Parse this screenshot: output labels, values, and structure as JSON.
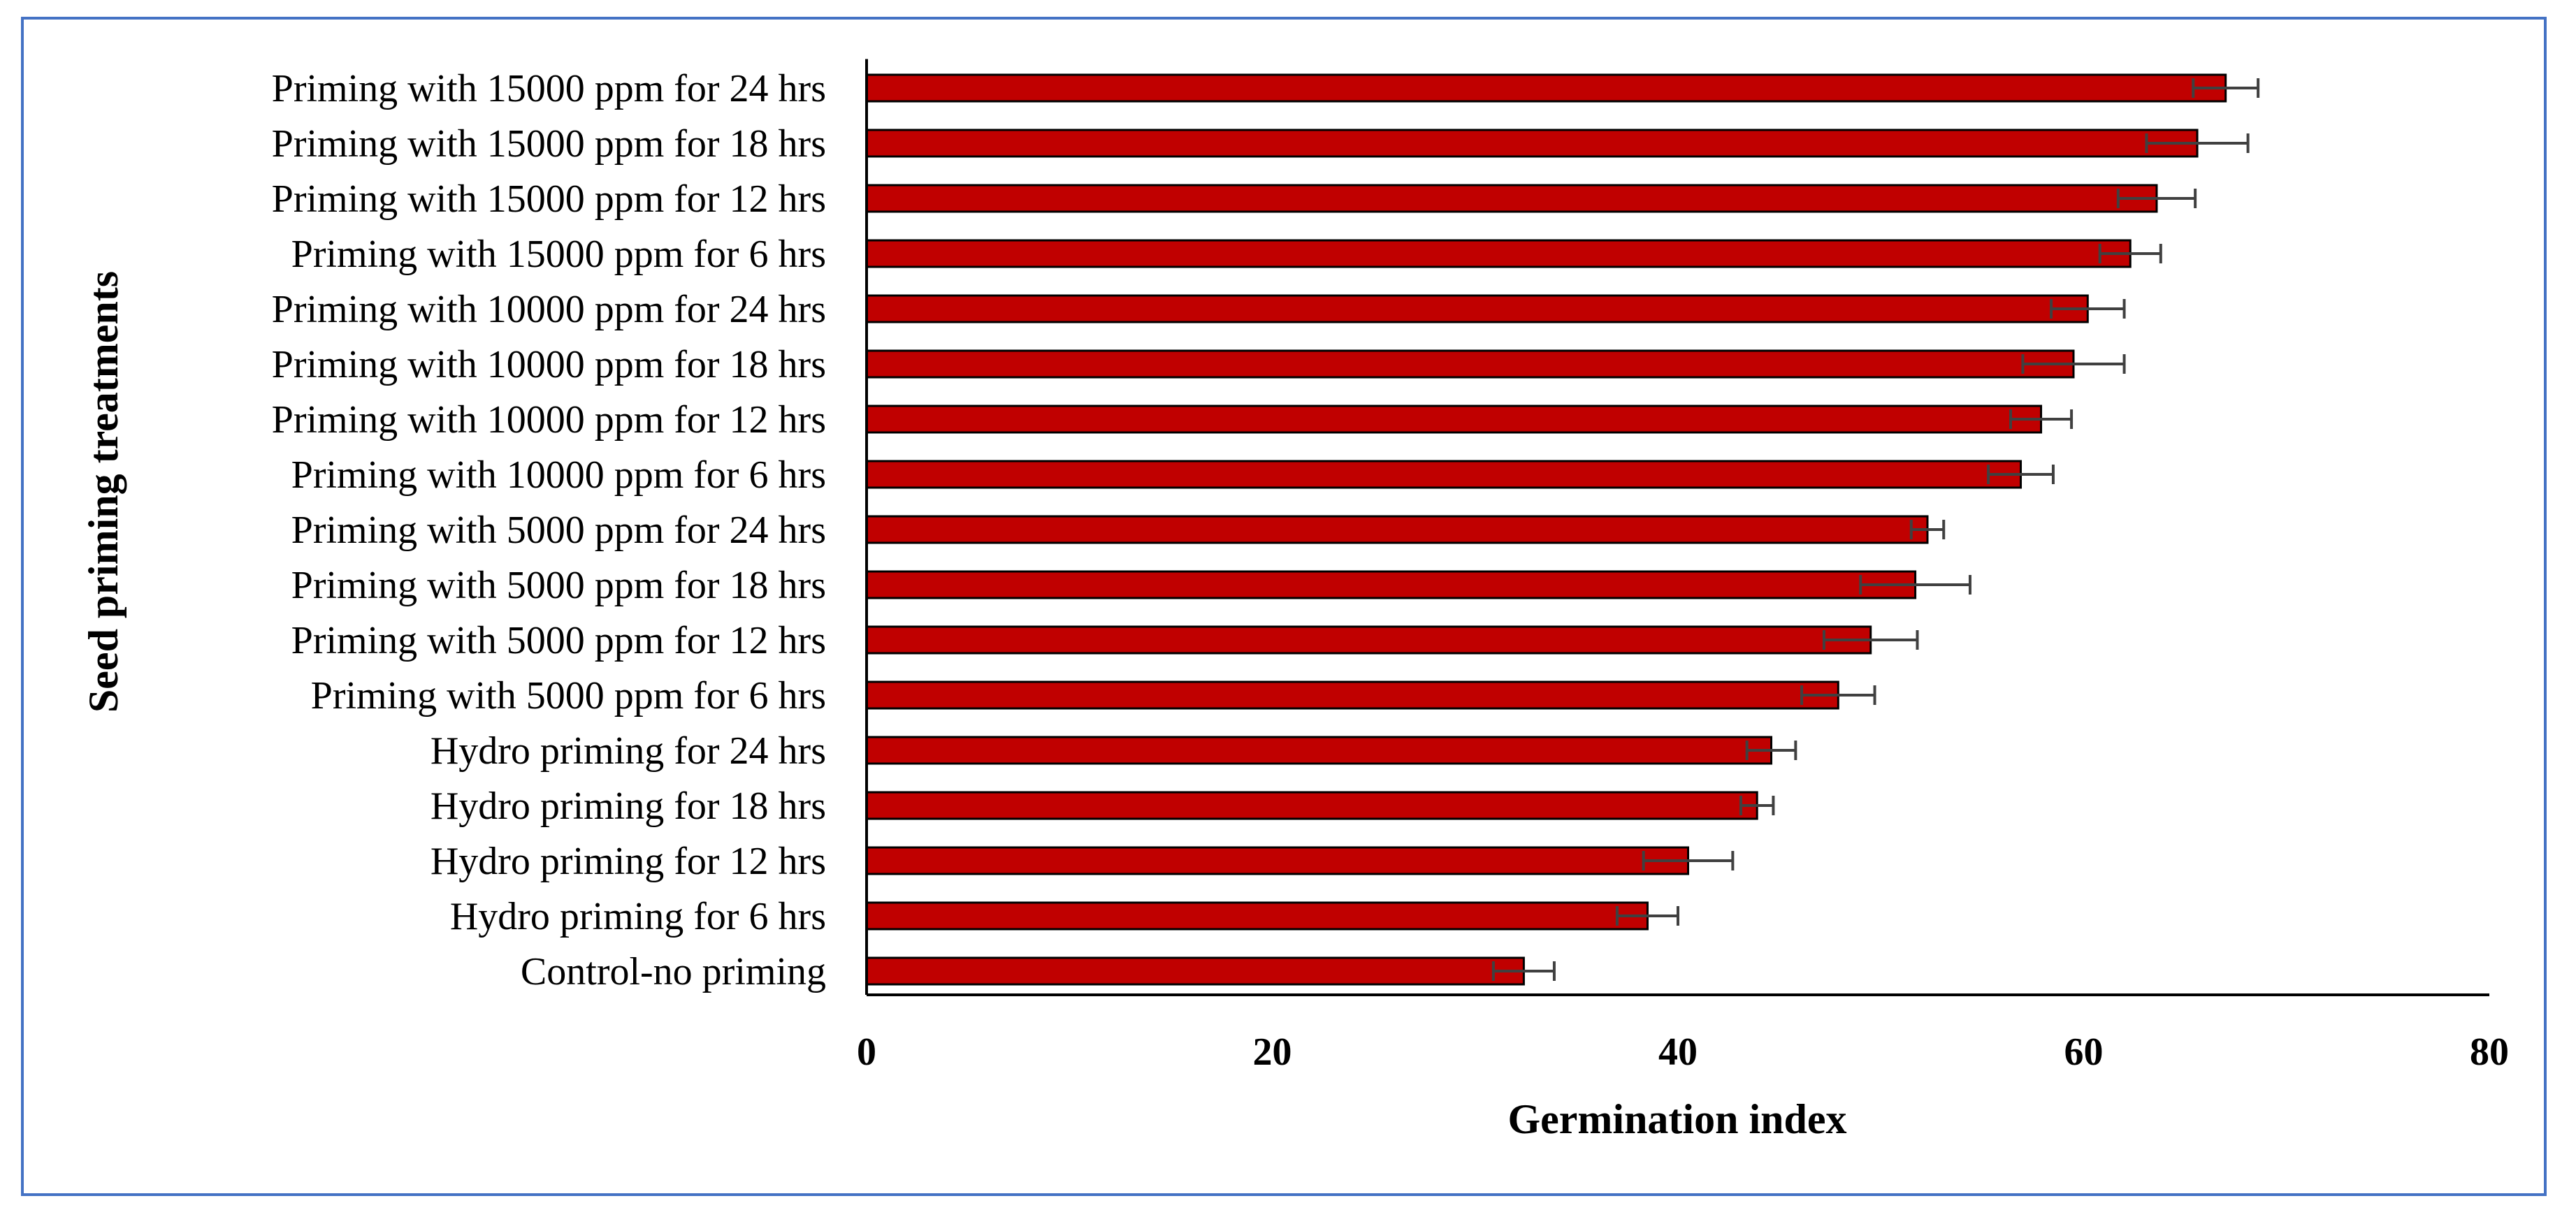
{
  "chart_data": {
    "type": "bar",
    "orientation": "horizontal",
    "xlabel": "Germination index",
    "ylabel": "Seed  priming treatments",
    "xlim": [
      0,
      80
    ],
    "xticks": [
      0,
      20,
      40,
      60,
      80
    ],
    "grid": false,
    "bar_color": "#c00000",
    "bar_edge_color": "#000000",
    "error_bar_color": "#404040",
    "frame_color": "#4472c4",
    "categories": [
      "Priming with 15000 ppm for 24 hrs",
      "Priming with 15000 ppm for 18 hrs",
      "Priming with 15000 ppm for 12 hrs",
      "Priming with 15000 ppm for 6 hrs",
      "Priming with 10000 ppm for 24 hrs",
      "Priming with 10000 ppm for 18 hrs",
      "Priming with 10000 ppm for 12 hrs",
      "Priming with 10000 ppm for 6 hrs",
      "Priming with 5000 ppm for 24 hrs",
      "Priming with 5000 ppm for 18 hrs",
      "Priming with 5000 ppm for 12 hrs",
      "Priming with 5000 ppm for 6 hrs",
      "Hydro priming for 24 hrs",
      "Hydro priming for 18 hrs",
      "Hydro priming for 12 hrs",
      "Hydro priming for 6 hrs",
      "Control-no priming"
    ],
    "values": [
      67.0,
      65.6,
      63.6,
      62.3,
      60.2,
      59.5,
      57.9,
      56.9,
      52.3,
      51.7,
      49.5,
      47.9,
      44.6,
      43.9,
      40.5,
      38.5,
      32.4
    ],
    "errors": [
      1.6,
      2.5,
      1.9,
      1.5,
      1.8,
      2.5,
      1.5,
      1.6,
      0.8,
      2.7,
      2.3,
      1.8,
      1.2,
      0.8,
      2.2,
      1.5,
      1.5
    ]
  }
}
